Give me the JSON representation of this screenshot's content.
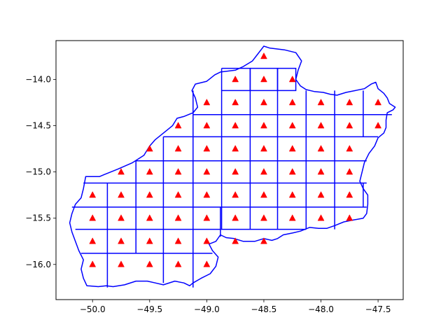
{
  "chart_data": {
    "type": "scatter",
    "title": "",
    "xlabel": "",
    "ylabel": "",
    "xlim": [
      -50.32,
      -47.28
    ],
    "ylim": [
      -16.38,
      -13.58
    ],
    "grid": false,
    "xticks": [
      -50.0,
      -49.5,
      -49.0,
      -48.5,
      -48.0,
      -47.5
    ],
    "xtick_labels": [
      "−50.0",
      "−49.5",
      "−49.0",
      "−48.5",
      "−48.0",
      "−47.5"
    ],
    "yticks": [
      -14.0,
      -14.5,
      -15.0,
      -15.5,
      -16.0
    ],
    "ytick_labels": [
      "−14.0",
      "−14.5",
      "−15.0",
      "−15.5",
      "−16.0"
    ],
    "colors": {
      "boundary": "#0000ff",
      "points": "#ff0000",
      "axes": "#000000"
    },
    "boundary": [
      [
        -48.5,
        -13.64
      ],
      [
        -48.45,
        -13.66
      ],
      [
        -48.32,
        -13.68
      ],
      [
        -48.22,
        -13.71
      ],
      [
        -48.17,
        -13.8
      ],
      [
        -48.2,
        -13.9
      ],
      [
        -48.22,
        -14.0
      ],
      [
        -48.18,
        -14.07
      ],
      [
        -48.13,
        -14.11
      ],
      [
        -48.06,
        -14.13
      ],
      [
        -47.98,
        -14.14
      ],
      [
        -47.92,
        -14.16
      ],
      [
        -47.86,
        -14.17
      ],
      [
        -47.78,
        -14.14
      ],
      [
        -47.7,
        -14.12
      ],
      [
        -47.62,
        -14.1
      ],
      [
        -47.56,
        -14.05
      ],
      [
        -47.52,
        -14.03
      ],
      [
        -47.5,
        -14.1
      ],
      [
        -47.45,
        -14.15
      ],
      [
        -47.42,
        -14.2
      ],
      [
        -47.4,
        -14.26
      ],
      [
        -47.35,
        -14.3
      ],
      [
        -47.37,
        -14.33
      ],
      [
        -47.42,
        -14.36
      ],
      [
        -47.43,
        -14.44
      ],
      [
        -47.43,
        -14.52
      ],
      [
        -47.45,
        -14.58
      ],
      [
        -47.5,
        -14.63
      ],
      [
        -47.53,
        -14.72
      ],
      [
        -47.58,
        -14.8
      ],
      [
        -47.62,
        -14.9
      ],
      [
        -47.64,
        -15.0
      ],
      [
        -47.66,
        -15.1
      ],
      [
        -47.63,
        -15.18
      ],
      [
        -47.59,
        -15.25
      ],
      [
        -47.59,
        -15.35
      ],
      [
        -47.6,
        -15.45
      ],
      [
        -47.63,
        -15.5
      ],
      [
        -47.72,
        -15.52
      ],
      [
        -47.8,
        -15.54
      ],
      [
        -47.88,
        -15.58
      ],
      [
        -47.95,
        -15.61
      ],
      [
        -48.02,
        -15.61
      ],
      [
        -48.1,
        -15.6
      ],
      [
        -48.18,
        -15.64
      ],
      [
        -48.25,
        -15.66
      ],
      [
        -48.33,
        -15.68
      ],
      [
        -48.38,
        -15.72
      ],
      [
        -48.43,
        -15.74
      ],
      [
        -48.5,
        -15.72
      ],
      [
        -48.58,
        -15.75
      ],
      [
        -48.68,
        -15.75
      ],
      [
        -48.76,
        -15.72
      ],
      [
        -48.83,
        -15.71
      ],
      [
        -48.88,
        -15.68
      ],
      [
        -48.92,
        -15.75
      ],
      [
        -48.98,
        -15.78
      ],
      [
        -48.95,
        -15.85
      ],
      [
        -48.9,
        -15.92
      ],
      [
        -48.92,
        -16.02
      ],
      [
        -48.97,
        -16.1
      ],
      [
        -49.05,
        -16.15
      ],
      [
        -49.12,
        -16.2
      ],
      [
        -49.15,
        -16.23
      ],
      [
        -49.2,
        -16.2
      ],
      [
        -49.28,
        -16.18
      ],
      [
        -49.38,
        -16.22
      ],
      [
        -49.45,
        -16.2
      ],
      [
        -49.52,
        -16.18
      ],
      [
        -49.62,
        -16.18
      ],
      [
        -49.72,
        -16.22
      ],
      [
        -49.82,
        -16.24
      ],
      [
        -49.88,
        -16.23
      ],
      [
        -49.95,
        -16.24
      ],
      [
        -50.05,
        -16.23
      ],
      [
        -50.08,
        -16.15
      ],
      [
        -50.1,
        -16.05
      ],
      [
        -50.08,
        -15.95
      ],
      [
        -50.12,
        -15.85
      ],
      [
        -50.15,
        -15.75
      ],
      [
        -50.18,
        -15.65
      ],
      [
        -50.2,
        -15.55
      ],
      [
        -50.18,
        -15.45
      ],
      [
        -50.15,
        -15.35
      ],
      [
        -50.1,
        -15.28
      ],
      [
        -50.08,
        -15.18
      ],
      [
        -50.06,
        -15.05
      ],
      [
        -49.94,
        -15.05
      ],
      [
        -49.9,
        -15.03
      ],
      [
        -49.78,
        -14.97
      ],
      [
        -49.65,
        -14.9
      ],
      [
        -49.55,
        -14.82
      ],
      [
        -49.5,
        -14.72
      ],
      [
        -49.45,
        -14.65
      ],
      [
        -49.4,
        -14.6
      ],
      [
        -49.35,
        -14.55
      ],
      [
        -49.3,
        -14.5
      ],
      [
        -49.26,
        -14.42
      ],
      [
        -49.2,
        -14.4
      ],
      [
        -49.16,
        -14.38
      ],
      [
        -49.12,
        -14.36
      ],
      [
        -49.08,
        -14.3
      ],
      [
        -49.1,
        -14.2
      ],
      [
        -49.13,
        -14.12
      ],
      [
        -49.1,
        -14.05
      ],
      [
        -49.0,
        -14.02
      ],
      [
        -48.93,
        -13.95
      ],
      [
        -48.88,
        -13.92
      ],
      [
        -48.75,
        -13.9
      ],
      [
        -48.68,
        -13.86
      ],
      [
        -48.6,
        -13.8
      ],
      [
        -48.55,
        -13.72
      ],
      [
        -48.5,
        -13.64
      ]
    ],
    "cells": [
      [
        [
          -48.62,
          -13.88
        ],
        [
          -48.38,
          -13.88
        ],
        [
          -48.38,
          -14.12
        ],
        [
          -48.62,
          -14.12
        ],
        [
          -48.62,
          -13.88
        ]
      ],
      [
        [
          -48.87,
          -13.88
        ],
        [
          -48.62,
          -13.88
        ],
        [
          -48.62,
          -14.12
        ],
        [
          -48.87,
          -14.12
        ],
        [
          -48.87,
          -13.88
        ]
      ],
      [
        [
          -48.38,
          -13.88
        ],
        [
          -48.22,
          -13.88
        ],
        [
          -48.22,
          -14.12
        ],
        [
          -48.38,
          -14.12
        ],
        [
          -48.38,
          -13.88
        ]
      ],
      [
        [
          -48.13,
          -14.12
        ],
        [
          -48.13,
          -14.38
        ],
        [
          -47.88,
          -14.38
        ],
        [
          -47.88,
          -14.12
        ]
      ],
      [
        [
          -47.63,
          -14.12
        ],
        [
          -47.63,
          -14.38
        ],
        [
          -47.38,
          -14.38
        ]
      ],
      [
        [
          -49.12,
          -14.38
        ],
        [
          -47.38,
          -14.38
        ]
      ],
      [
        [
          -49.12,
          -14.38
        ],
        [
          -49.12,
          -14.12
        ]
      ],
      [
        [
          -48.87,
          -14.12
        ],
        [
          -48.87,
          -15.62
        ]
      ],
      [
        [
          -48.62,
          -14.12
        ],
        [
          -48.62,
          -15.62
        ]
      ],
      [
        [
          -48.38,
          -14.12
        ],
        [
          -48.38,
          -15.62
        ]
      ],
      [
        [
          -48.13,
          -14.38
        ],
        [
          -48.13,
          -15.62
        ]
      ],
      [
        [
          -47.88,
          -14.38
        ],
        [
          -47.88,
          -15.62
        ]
      ],
      [
        [
          -47.63,
          -14.38
        ],
        [
          -47.63,
          -14.62
        ]
      ],
      [
        [
          -49.38,
          -14.62
        ],
        [
          -47.5,
          -14.62
        ]
      ],
      [
        [
          -49.62,
          -14.88
        ],
        [
          -47.6,
          -14.88
        ]
      ],
      [
        [
          -49.38,
          -14.62
        ],
        [
          -49.38,
          -16.2
        ]
      ],
      [
        [
          -49.12,
          -14.38
        ],
        [
          -49.12,
          -16.25
        ]
      ],
      [
        [
          -49.62,
          -14.88
        ],
        [
          -49.62,
          -15.88
        ]
      ],
      [
        [
          -50.08,
          -15.12
        ],
        [
          -47.6,
          -15.12
        ]
      ],
      [
        [
          -49.87,
          -15.12
        ],
        [
          -49.87,
          -16.25
        ]
      ],
      [
        [
          -50.18,
          -15.38
        ],
        [
          -47.6,
          -15.38
        ]
      ],
      [
        [
          -50.15,
          -15.62
        ],
        [
          -48.13,
          -15.62
        ]
      ],
      [
        [
          -50.1,
          -15.88
        ],
        [
          -48.95,
          -15.88
        ]
      ],
      [
        [
          -48.88,
          -15.38
        ],
        [
          -48.88,
          -15.7
        ]
      ],
      [
        [
          -47.63,
          -15.12
        ],
        [
          -47.63,
          -15.38
        ]
      ]
    ],
    "points": [
      {
        "x": -48.5,
        "y": -13.75
      },
      {
        "x": -48.75,
        "y": -14.0
      },
      {
        "x": -48.5,
        "y": -14.0
      },
      {
        "x": -48.25,
        "y": -14.0
      },
      {
        "x": -49.0,
        "y": -14.25
      },
      {
        "x": -48.75,
        "y": -14.25
      },
      {
        "x": -48.5,
        "y": -14.25
      },
      {
        "x": -48.25,
        "y": -14.25
      },
      {
        "x": -48.0,
        "y": -14.25
      },
      {
        "x": -47.75,
        "y": -14.25
      },
      {
        "x": -47.5,
        "y": -14.25
      },
      {
        "x": -49.25,
        "y": -14.5
      },
      {
        "x": -49.0,
        "y": -14.5
      },
      {
        "x": -48.75,
        "y": -14.5
      },
      {
        "x": -48.5,
        "y": -14.5
      },
      {
        "x": -48.25,
        "y": -14.5
      },
      {
        "x": -48.0,
        "y": -14.5
      },
      {
        "x": -47.75,
        "y": -14.5
      },
      {
        "x": -47.5,
        "y": -14.5
      },
      {
        "x": -49.5,
        "y": -14.75
      },
      {
        "x": -49.25,
        "y": -14.75
      },
      {
        "x": -49.0,
        "y": -14.75
      },
      {
        "x": -48.75,
        "y": -14.75
      },
      {
        "x": -48.5,
        "y": -14.75
      },
      {
        "x": -48.25,
        "y": -14.75
      },
      {
        "x": -48.0,
        "y": -14.75
      },
      {
        "x": -47.75,
        "y": -14.75
      },
      {
        "x": -49.75,
        "y": -15.0
      },
      {
        "x": -49.5,
        "y": -15.0
      },
      {
        "x": -49.25,
        "y": -15.0
      },
      {
        "x": -49.0,
        "y": -15.0
      },
      {
        "x": -48.75,
        "y": -15.0
      },
      {
        "x": -48.5,
        "y": -15.0
      },
      {
        "x": -48.25,
        "y": -15.0
      },
      {
        "x": -48.0,
        "y": -15.0
      },
      {
        "x": -47.75,
        "y": -15.0
      },
      {
        "x": -50.0,
        "y": -15.25
      },
      {
        "x": -49.75,
        "y": -15.25
      },
      {
        "x": -49.5,
        "y": -15.25
      },
      {
        "x": -49.25,
        "y": -15.25
      },
      {
        "x": -49.0,
        "y": -15.25
      },
      {
        "x": -48.75,
        "y": -15.25
      },
      {
        "x": -48.5,
        "y": -15.25
      },
      {
        "x": -48.25,
        "y": -15.25
      },
      {
        "x": -48.0,
        "y": -15.25
      },
      {
        "x": -47.75,
        "y": -15.25
      },
      {
        "x": -50.0,
        "y": -15.5
      },
      {
        "x": -49.75,
        "y": -15.5
      },
      {
        "x": -49.5,
        "y": -15.5
      },
      {
        "x": -49.25,
        "y": -15.5
      },
      {
        "x": -49.0,
        "y": -15.5
      },
      {
        "x": -48.75,
        "y": -15.5
      },
      {
        "x": -48.5,
        "y": -15.5
      },
      {
        "x": -48.25,
        "y": -15.5
      },
      {
        "x": -48.0,
        "y": -15.5
      },
      {
        "x": -47.75,
        "y": -15.5
      },
      {
        "x": -50.0,
        "y": -15.75
      },
      {
        "x": -49.75,
        "y": -15.75
      },
      {
        "x": -49.5,
        "y": -15.75
      },
      {
        "x": -49.25,
        "y": -15.75
      },
      {
        "x": -49.0,
        "y": -15.75
      },
      {
        "x": -48.75,
        "y": -15.75
      },
      {
        "x": -48.5,
        "y": -15.75
      },
      {
        "x": -50.0,
        "y": -16.0
      },
      {
        "x": -49.75,
        "y": -16.0
      },
      {
        "x": -49.5,
        "y": -16.0
      },
      {
        "x": -49.25,
        "y": -16.0
      },
      {
        "x": -49.0,
        "y": -16.0
      }
    ]
  }
}
